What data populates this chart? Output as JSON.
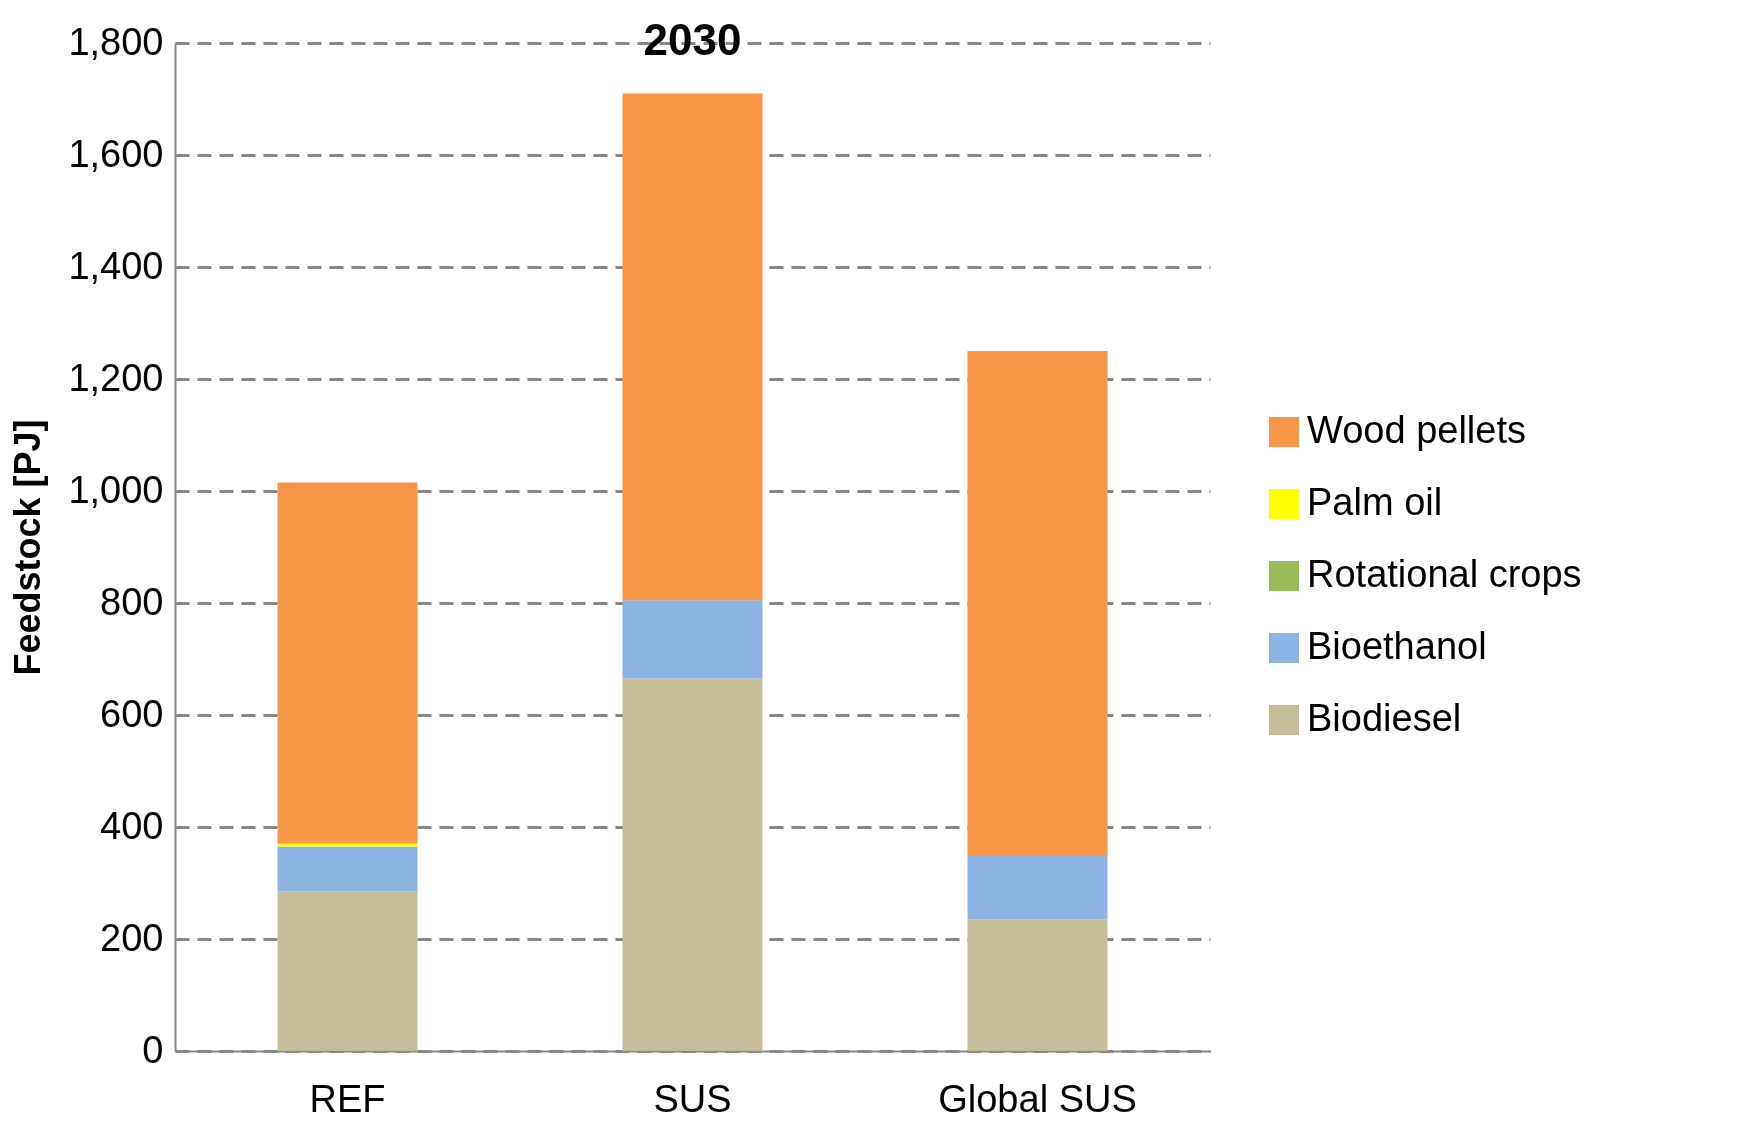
{
  "chart_data": {
    "type": "bar",
    "title": "2030",
    "ylabel": "Feedstock [PJ]",
    "categories": [
      "REF",
      "SUS",
      "Global SUS"
    ],
    "stacked": true,
    "series": [
      {
        "name": "Biodiesel",
        "color": "#c4bd97",
        "values": [
          285,
          665,
          235
        ]
      },
      {
        "name": "Bioethanol",
        "color": "#8db3e2",
        "values": [
          80,
          140,
          115
        ]
      },
      {
        "name": "Rotational crops",
        "color": "#9bbb59",
        "values": [
          0,
          0,
          0
        ]
      },
      {
        "name": "Palm oil",
        "color": "#ffff00",
        "values": [
          5,
          0,
          0
        ]
      },
      {
        "name": "Wood pellets",
        "color": "#f79646",
        "values": [
          645,
          905,
          900
        ]
      }
    ],
    "ylim": [
      0,
      1800
    ],
    "yticks": [
      0,
      200,
      400,
      600,
      800,
      {
        "value": 1000,
        "label": "1,000"
      },
      {
        "value": 1200,
        "label": "1,200"
      },
      {
        "value": 1400,
        "label": "1,400"
      },
      {
        "value": 1600,
        "label": "1,600"
      },
      {
        "value": 1800,
        "label": "1,800"
      }
    ],
    "grid": "y",
    "legend": "right"
  }
}
